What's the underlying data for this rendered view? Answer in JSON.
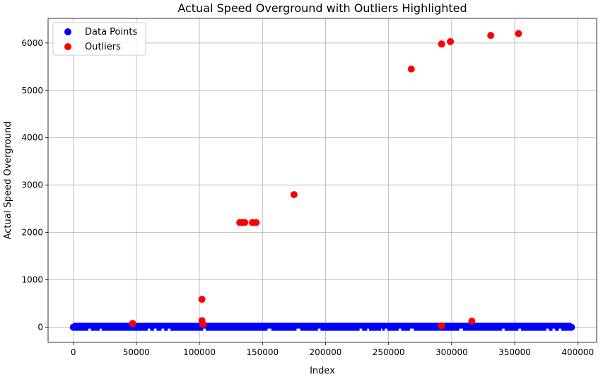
{
  "chart_data": {
    "type": "scatter",
    "title": "Actual Speed Overground with Outliers Highlighted",
    "xlabel": "Index",
    "ylabel": "Actual Speed Overground",
    "xlim": [
      -20000,
      415000
    ],
    "ylim": [
      -320,
      6520
    ],
    "grid": true,
    "legend_position": "top-left",
    "xticks": [
      0,
      50000,
      100000,
      150000,
      200000,
      250000,
      300000,
      350000,
      400000
    ],
    "xtick_labels": [
      "0",
      "50000",
      "100000",
      "150000",
      "200000",
      "250000",
      "300000",
      "350000",
      "400000"
    ],
    "yticks": [
      0,
      1000,
      2000,
      3000,
      4000,
      5000,
      6000
    ],
    "ytick_labels": [
      "0",
      "1000",
      "2000",
      "3000",
      "4000",
      "5000",
      "6000"
    ],
    "series": [
      {
        "name": "Data Points",
        "color": "#0000ff",
        "style": "dense-band",
        "x_range": [
          0,
          395000
        ],
        "y_range": [
          0,
          20
        ],
        "gaps": [
          [
            12000,
            14000
          ],
          [
            21000,
            22500
          ],
          [
            59000,
            61000
          ],
          [
            64000,
            66000
          ],
          [
            70000,
            72000
          ],
          [
            75000,
            77000
          ],
          [
            103000,
            105000
          ],
          [
            154000,
            157000
          ],
          [
            177000,
            180000
          ],
          [
            194000,
            196000
          ],
          [
            227000,
            229000
          ],
          [
            233000,
            234500
          ],
          [
            244000,
            245000
          ],
          [
            247000,
            249000
          ],
          [
            258000,
            260000
          ],
          [
            267000,
            270000
          ],
          [
            306000,
            309000
          ],
          [
            340000,
            342000
          ],
          [
            353000,
            355000
          ],
          [
            375000,
            377000
          ],
          [
            380000,
            382000
          ],
          [
            385000,
            387000
          ]
        ]
      },
      {
        "name": "Outliers",
        "color": "#ff0000",
        "points": [
          {
            "x": 47000,
            "y": 80
          },
          {
            "x": 102000,
            "y": 590
          },
          {
            "x": 102000,
            "y": 140
          },
          {
            "x": 103000,
            "y": 60
          },
          {
            "x": 132000,
            "y": 2210
          },
          {
            "x": 134000,
            "y": 2210
          },
          {
            "x": 136000,
            "y": 2210
          },
          {
            "x": 142000,
            "y": 2210
          },
          {
            "x": 145000,
            "y": 2210
          },
          {
            "x": 175000,
            "y": 2800
          },
          {
            "x": 268000,
            "y": 5450
          },
          {
            "x": 292000,
            "y": 5980
          },
          {
            "x": 299000,
            "y": 6030
          },
          {
            "x": 292000,
            "y": 30
          },
          {
            "x": 316000,
            "y": 130
          },
          {
            "x": 331000,
            "y": 6160
          },
          {
            "x": 353000,
            "y": 6200
          }
        ]
      }
    ]
  }
}
